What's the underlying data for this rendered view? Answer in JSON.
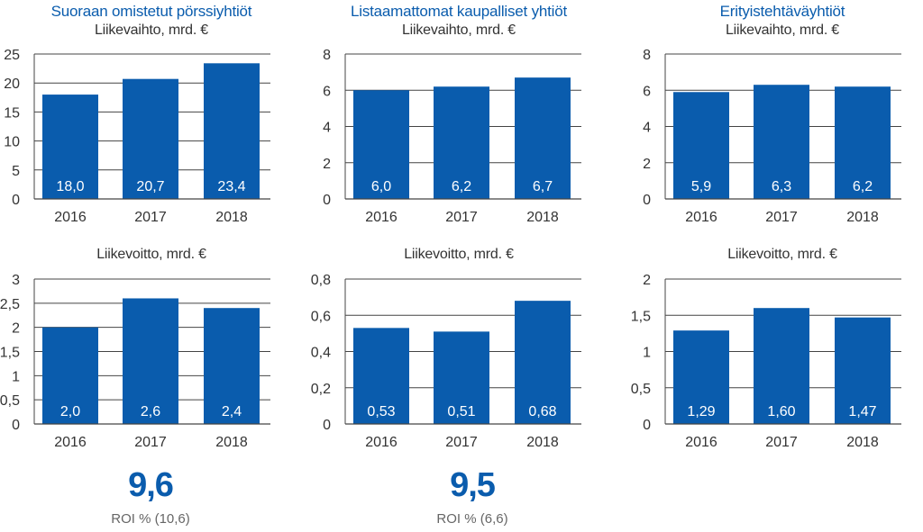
{
  "colors": {
    "accent": "#0a5cad",
    "bar": "#0a5cad",
    "bar_label": "#ffffff",
    "axis": "#333333",
    "grid": "#444444"
  },
  "columns": [
    {
      "title": "Suoraan omistetut pörssiyhtiöt",
      "roi": {
        "value": "9,6",
        "label": "ROI % (10,6)"
      }
    },
    {
      "title": "Listaamattomat kaupalliset yhtiöt",
      "roi": {
        "value": "9,5",
        "label": "ROI % (6,6)"
      }
    },
    {
      "title": "Erityistehtäväyhtiöt",
      "roi": null
    }
  ],
  "chart_data": [
    {
      "type": "bar",
      "title": "Liikevaihto, mrd. €",
      "categories": [
        "2016",
        "2017",
        "2018"
      ],
      "values": [
        18.0,
        20.7,
        23.4
      ],
      "labels": [
        "18,0",
        "20,7",
        "23,4"
      ],
      "ylim": [
        0,
        25
      ],
      "yticks": [
        "0",
        "5",
        "10",
        "15",
        "20",
        "25"
      ],
      "xlabel": "",
      "ylabel": "",
      "grid": true
    },
    {
      "type": "bar",
      "title": "Liikevaihto, mrd. €",
      "categories": [
        "2016",
        "2017",
        "2018"
      ],
      "values": [
        6.0,
        6.2,
        6.7
      ],
      "labels": [
        "6,0",
        "6,2",
        "6,7"
      ],
      "ylim": [
        0,
        8
      ],
      "yticks": [
        "0",
        "2",
        "4",
        "6",
        "8"
      ],
      "xlabel": "",
      "ylabel": "",
      "grid": true
    },
    {
      "type": "bar",
      "title": "Liikevaihto, mrd. €",
      "categories": [
        "2016",
        "2017",
        "2018"
      ],
      "values": [
        5.9,
        6.3,
        6.2
      ],
      "labels": [
        "5,9",
        "6,3",
        "6,2"
      ],
      "ylim": [
        0,
        8
      ],
      "yticks": [
        "0",
        "2",
        "4",
        "6",
        "8"
      ],
      "xlabel": "",
      "ylabel": "",
      "grid": true
    },
    {
      "type": "bar",
      "title": "Liikevoitto, mrd. €",
      "categories": [
        "2016",
        "2017",
        "2018"
      ],
      "values": [
        2.0,
        2.6,
        2.4
      ],
      "labels": [
        "2,0",
        "2,6",
        "2,4"
      ],
      "ylim": [
        0,
        3
      ],
      "yticks": [
        "0",
        "0,5",
        "1",
        "1,5",
        "2",
        "2,5",
        "3"
      ],
      "xlabel": "",
      "ylabel": "",
      "grid": true
    },
    {
      "type": "bar",
      "title": "Liikevoitto, mrd. €",
      "categories": [
        "2016",
        "2017",
        "2018"
      ],
      "values": [
        0.53,
        0.51,
        0.68
      ],
      "labels": [
        "0,53",
        "0,51",
        "0,68"
      ],
      "ylim": [
        0,
        0.8
      ],
      "yticks": [
        "0",
        "0,2",
        "0,4",
        "0,6",
        "0,8"
      ],
      "xlabel": "",
      "ylabel": "",
      "grid": true
    },
    {
      "type": "bar",
      "title": "Liikevoitto, mrd. €",
      "categories": [
        "2016",
        "2017",
        "2018"
      ],
      "values": [
        1.29,
        1.6,
        1.47
      ],
      "labels": [
        "1,29",
        "1,60",
        "1,47"
      ],
      "ylim": [
        0,
        2
      ],
      "yticks": [
        "0",
        "0,5",
        "1",
        "1,5",
        "2"
      ],
      "xlabel": "",
      "ylabel": "",
      "grid": true
    }
  ]
}
